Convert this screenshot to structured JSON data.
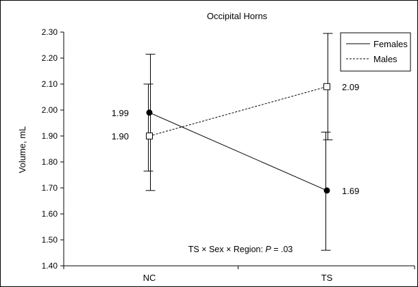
{
  "chart_data": {
    "type": "line",
    "title": "Occipital Horns",
    "xlabel": "",
    "ylabel": "Volume, mL",
    "categories": [
      "NC",
      "TS"
    ],
    "ylim": [
      1.4,
      2.3
    ],
    "yticks": [
      "1.40",
      "1.50",
      "1.60",
      "1.70",
      "1.80",
      "1.90",
      "2.00",
      "2.10",
      "2.20",
      "2.30"
    ],
    "series": [
      {
        "name": "Females",
        "values": [
          1.99,
          1.69
        ],
        "value_labels": [
          "1.99",
          "1.69"
        ],
        "line_style": "solid",
        "marker": "filled-circle",
        "error_low": [
          1.765,
          1.46
        ],
        "error_high": [
          2.1,
          1.915
        ]
      },
      {
        "name": "Males",
        "values": [
          1.9,
          2.09
        ],
        "value_labels": [
          "1.90",
          "2.09"
        ],
        "line_style": "dotted",
        "marker": "open-square",
        "error_low": [
          1.69,
          1.885
        ],
        "error_high": [
          2.215,
          2.295
        ]
      }
    ],
    "legend": {
      "position": "top-right",
      "entries": [
        "Females",
        "Males"
      ]
    },
    "annotation": {
      "prefix": "TS × Sex × Region: ",
      "p_symbol": "P",
      "suffix": " = .03"
    },
    "grid": false
  }
}
